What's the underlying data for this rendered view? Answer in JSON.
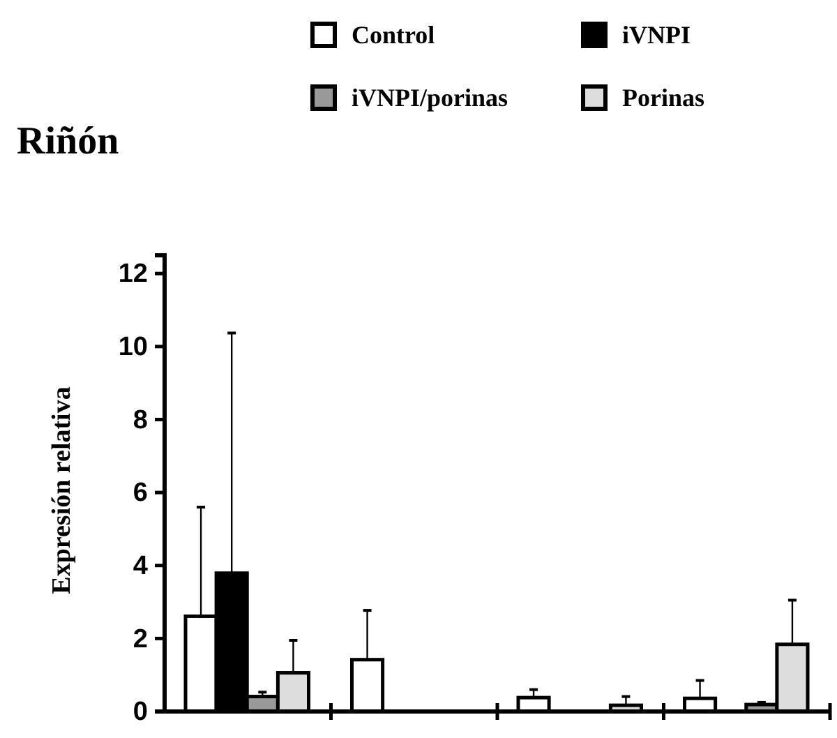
{
  "chart_data": {
    "type": "bar",
    "title": "Riñón",
    "ylabel": "Expresión relativa",
    "categories": [
      null,
      null,
      null,
      null
    ],
    "series": [
      {
        "name": "Control",
        "color": "#ffffff",
        "values": [
          2.61,
          1.42,
          0.38,
          0.36
        ],
        "errors": [
          [
            2.61,
            5.6
          ],
          [
            1.42,
            2.77
          ],
          [
            0.38,
            0.6
          ],
          [
            0.36,
            0.85
          ]
        ]
      },
      {
        "name": "iVNPI",
        "color": "#000000",
        "values": [
          3.79,
          0,
          0,
          0
        ],
        "errors": [
          [
            3.79,
            10.37
          ],
          null,
          null,
          null
        ]
      },
      {
        "name": "iVNPI/porinas",
        "color": "#999999",
        "values": [
          0.41,
          0,
          0,
          0.19
        ],
        "errors": [
          [
            0.41,
            0.53
          ],
          null,
          null,
          [
            0.19,
            0.25
          ]
        ]
      },
      {
        "name": "Porinas",
        "color": "#dddddd",
        "values": [
          1.06,
          0,
          0.17,
          1.84
        ],
        "errors": [
          [
            1.06,
            1.95
          ],
          null,
          [
            0.17,
            0.41
          ],
          [
            1.84,
            3.05
          ]
        ]
      }
    ],
    "ylim": [
      0,
      12.5
    ],
    "yticks": [
      0,
      2,
      4,
      6,
      8,
      10,
      12
    ],
    "grid": false,
    "legend": "top right"
  }
}
